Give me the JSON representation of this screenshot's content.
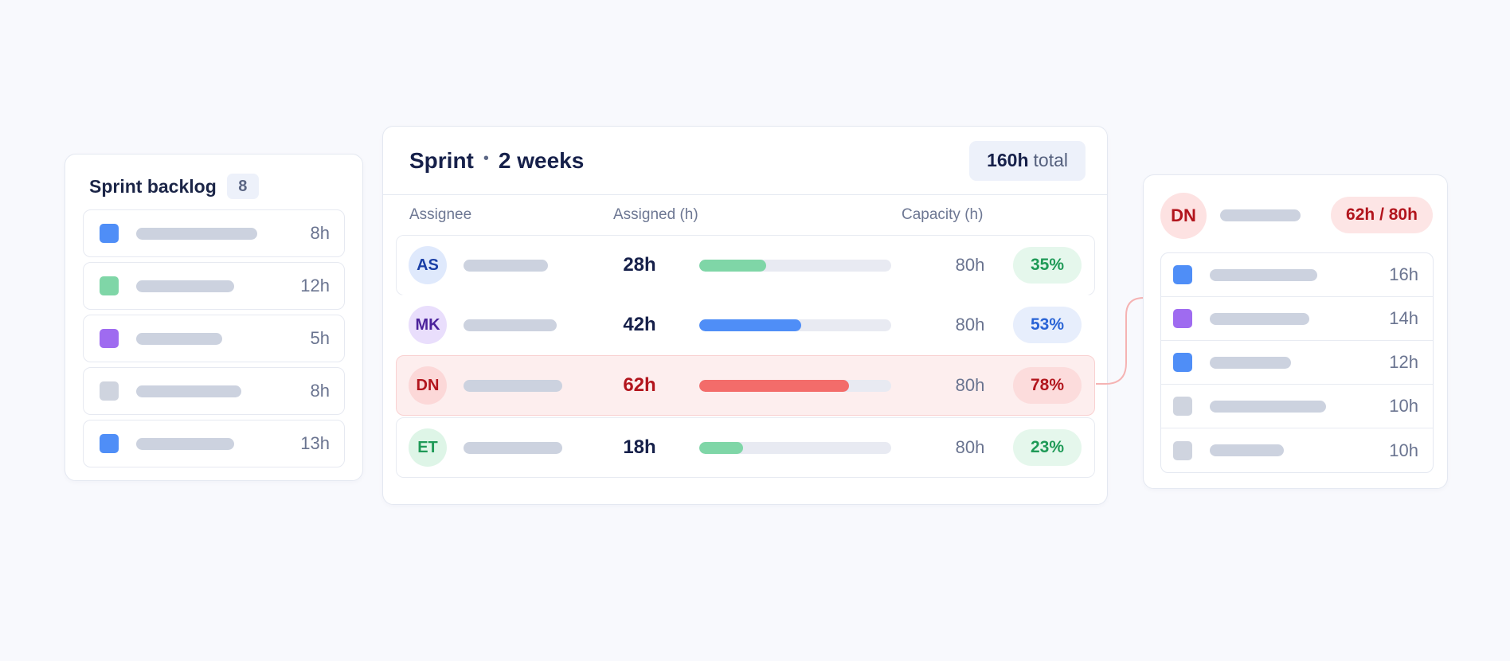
{
  "colors": {
    "blue": "#4f8ef7",
    "green": "#7fd6a7",
    "purple": "#9f6bf0",
    "gray": "#cfd4df",
    "red": "#f36c6a",
    "placeholder": "#ccd2df"
  },
  "backlog": {
    "title": "Sprint backlog",
    "count": "8",
    "items": [
      {
        "hours": "8h",
        "color": "#4f8ef7",
        "bar_fraction": 0.62
      },
      {
        "hours": "12h",
        "color": "#7fd6a7",
        "bar_fraction": 0.5
      },
      {
        "hours": "5h",
        "color": "#9f6bf0",
        "bar_fraction": 0.44
      },
      {
        "hours": "8h",
        "color": "#cfd4df",
        "bar_fraction": 0.54
      },
      {
        "hours": "13h",
        "color": "#4f8ef7",
        "bar_fraction": 0.5
      }
    ]
  },
  "sprint": {
    "title": "Sprint",
    "separator": "•",
    "duration": "2 weeks",
    "total_value": "160h",
    "total_label": "total",
    "columns": {
      "assignee": "Assignee",
      "assigned": "Assigned (h)",
      "capacity": "Capacity (h)"
    },
    "rows": [
      {
        "initials": "AS",
        "assigned": "28h",
        "capacity": "80h",
        "percent": "35%",
        "utilization": 0.35,
        "bar_color": "#7fd6a7",
        "avatar_bg": "#dfe9fc",
        "avatar_fg": "#1a3fa6",
        "assigned_color": "#16204a",
        "pct_bg": "#e5f7ec",
        "pct_fg": "#1f9a57",
        "highlight": false,
        "bordered": true
      },
      {
        "initials": "MK",
        "assigned": "42h",
        "capacity": "80h",
        "percent": "53%",
        "utilization": 0.53,
        "bar_color": "#4f8ef7",
        "avatar_bg": "#e9defc",
        "avatar_fg": "#4b229b",
        "assigned_color": "#16204a",
        "pct_bg": "#e7eefc",
        "pct_fg": "#2a64d6",
        "highlight": false,
        "bordered": false
      },
      {
        "initials": "DN",
        "assigned": "62h",
        "capacity": "80h",
        "percent": "78%",
        "utilization": 0.78,
        "bar_color": "#f36c6a",
        "avatar_bg": "#fcd8d8",
        "avatar_fg": "#b2151d",
        "assigned_color": "#b2151d",
        "pct_bg": "#fcdcdc",
        "pct_fg": "#b2151d",
        "highlight": true,
        "bordered": true
      },
      {
        "initials": "ET",
        "assigned": "18h",
        "capacity": "80h",
        "percent": "23%",
        "utilization": 0.23,
        "bar_color": "#7fd6a7",
        "avatar_bg": "#def5e7",
        "avatar_fg": "#1f9a57",
        "assigned_color": "#16204a",
        "pct_bg": "#e5f7ec",
        "pct_fg": "#1f9a57",
        "highlight": false,
        "bordered": true
      }
    ]
  },
  "detail": {
    "initials": "DN",
    "usage": "62h / 80h",
    "items": [
      {
        "hours": "16h",
        "color": "#4f8ef7",
        "bar_fraction": 0.58
      },
      {
        "hours": "14h",
        "color": "#9f6bf0",
        "bar_fraction": 0.54
      },
      {
        "hours": "12h",
        "color": "#4f8ef7",
        "bar_fraction": 0.44
      },
      {
        "hours": "10h",
        "color": "#cfd4df",
        "bar_fraction": 0.63
      },
      {
        "hours": "10h",
        "color": "#cfd4df",
        "bar_fraction": 0.4
      }
    ]
  }
}
